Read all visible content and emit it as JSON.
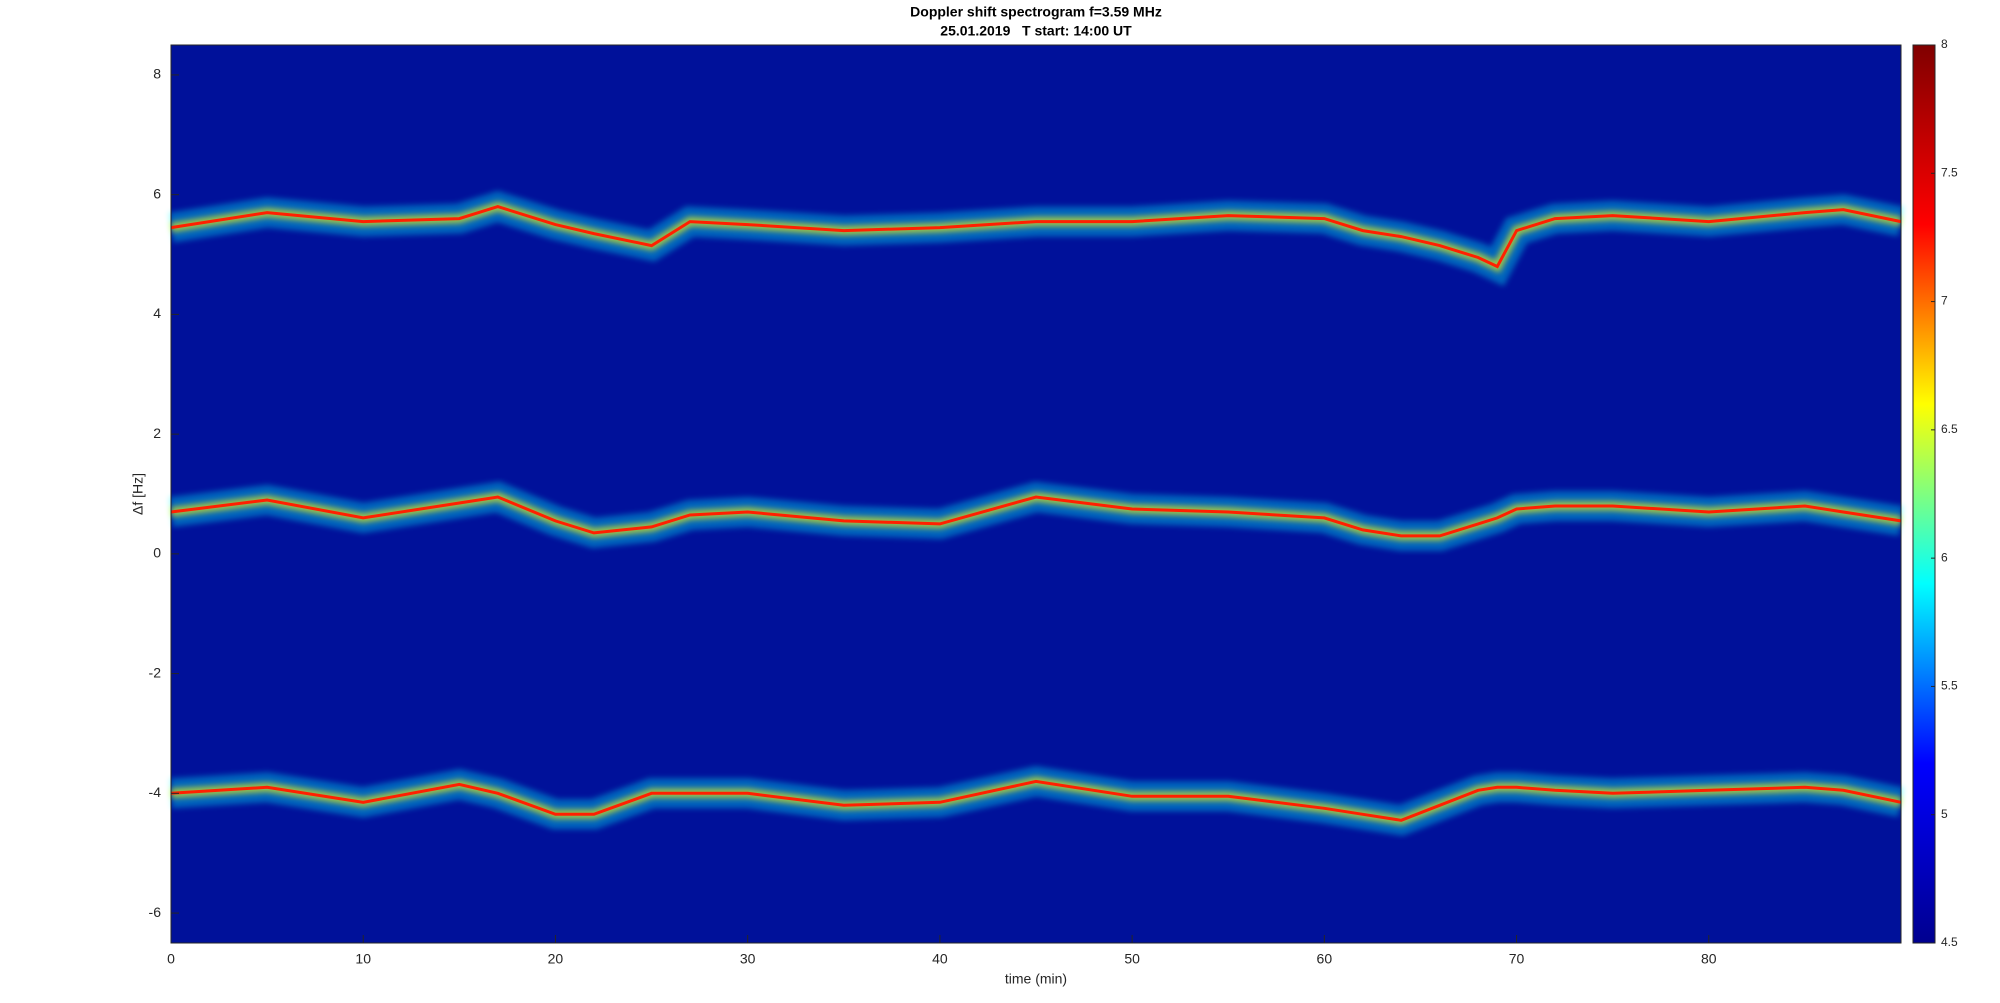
{
  "chart_data": {
    "type": "spectrogram",
    "title": "Doppler shift spectrogram f=3.59 MHz",
    "subtitle": "25.01.2019   T start: 14:00 UT",
    "x_label": "time (min)",
    "y_label": "Δf [Hz]",
    "x": [
      0,
      5,
      10,
      15,
      17,
      20,
      22,
      25,
      27,
      30,
      35,
      40,
      45,
      50,
      55,
      60,
      62,
      64,
      66,
      68,
      69,
      70,
      72,
      75,
      80,
      85,
      87,
      90
    ],
    "series": [
      {
        "color": "#ff2000",
        "values": [
          5.45,
          5.7,
          5.55,
          5.6,
          5.8,
          5.5,
          5.35,
          5.15,
          5.55,
          5.5,
          5.4,
          5.45,
          5.55,
          5.55,
          5.65,
          5.6,
          5.4,
          5.3,
          5.15,
          4.95,
          4.8,
          5.4,
          5.6,
          5.65,
          5.55,
          5.7,
          5.75,
          5.55
        ]
      },
      {
        "color": "#ff2000",
        "values": [
          0.7,
          0.9,
          0.6,
          0.85,
          0.95,
          0.55,
          0.35,
          0.45,
          0.65,
          0.7,
          0.55,
          0.5,
          0.95,
          0.75,
          0.7,
          0.6,
          0.4,
          0.3,
          0.3,
          0.5,
          0.6,
          0.75,
          0.8,
          0.8,
          0.7,
          0.8,
          0.7,
          0.55
        ]
      },
      {
        "color": "#ff2000",
        "values": [
          -4,
          -3.9,
          -4.15,
          -3.85,
          -4,
          -4.35,
          -4.35,
          -4,
          -4,
          -4,
          -4.2,
          -4.15,
          -3.8,
          -4.05,
          -4.05,
          -4.25,
          -4.35,
          -4.45,
          -4.2,
          -3.95,
          -3.9,
          -3.9,
          -3.95,
          -4,
          -3.95,
          -3.9,
          -3.95,
          -4.15
        ]
      }
    ],
    "xlim": [
      0,
      90
    ],
    "xticks": [
      0,
      10,
      20,
      30,
      40,
      50,
      60,
      70,
      80
    ],
    "ylim": [
      -6.5,
      8.5
    ],
    "yticks": [
      -6,
      -4,
      -2,
      0,
      2,
      4,
      6,
      8
    ],
    "background": "#00119a",
    "colormap": [
      "#00008f",
      "#0000ff",
      "#00ffff",
      "#ffff00",
      "#ff0000",
      "#800000"
    ],
    "clim": [
      4.5,
      8
    ],
    "cticks": [
      4.5,
      5,
      5.5,
      6,
      6.5,
      7,
      7.5,
      8
    ]
  }
}
